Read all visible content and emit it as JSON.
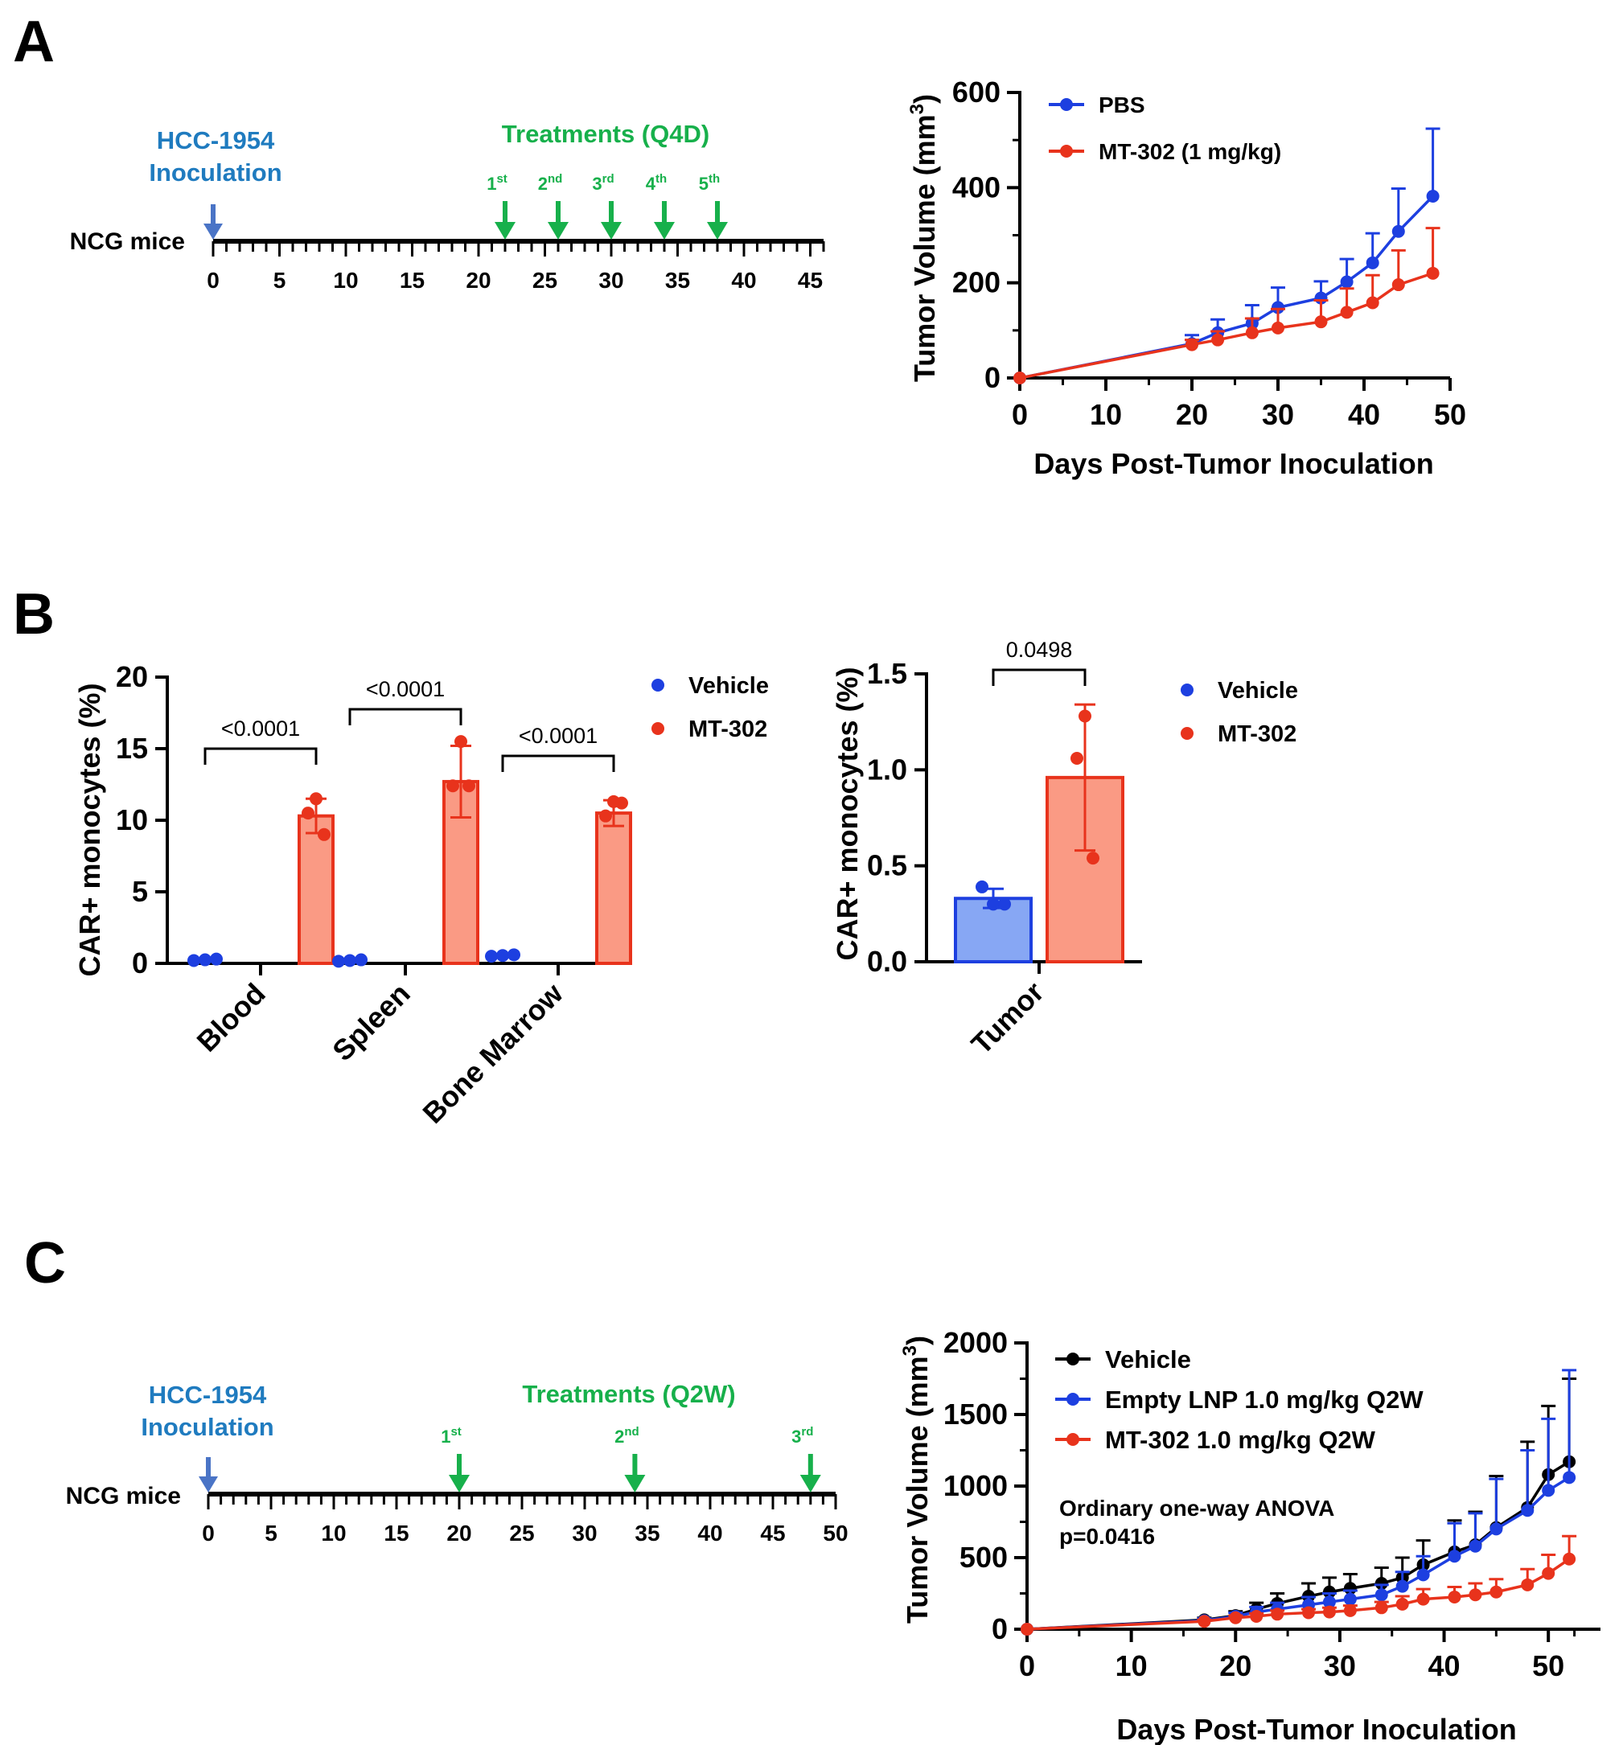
{
  "colors": {
    "blue": "#1d3fe0",
    "red": "#e8331c",
    "black": "#000000",
    "green": "#17b04b",
    "steel": "#1f7bbf",
    "arrowblue": "#4a74c6",
    "salmon": "#fa9a84",
    "lightblue": "#87a7f4"
  },
  "panels": {
    "A": "A",
    "B": "B",
    "C": "C"
  },
  "timelineA": {
    "mice_label": "NCG mice",
    "inoc_line1": "HCC-1954",
    "inoc_line2": "Inoculation",
    "treat_label": "Treatments (Q4D)",
    "min": 0,
    "max": 46,
    "tick_labels": [
      0,
      5,
      10,
      15,
      20,
      25,
      30,
      35,
      40,
      45
    ],
    "inoculation_day": 0,
    "doses": [
      {
        "day": 22,
        "num": "1",
        "sup": "st"
      },
      {
        "day": 26,
        "num": "2",
        "sup": "nd"
      },
      {
        "day": 30,
        "num": "3",
        "sup": "rd"
      },
      {
        "day": 34,
        "num": "4",
        "sup": "th"
      },
      {
        "day": 38,
        "num": "5",
        "sup": "th"
      }
    ]
  },
  "timelineC": {
    "mice_label": "NCG mice",
    "inoc_line1": "HCC-1954",
    "inoc_line2": "Inoculation",
    "treat_label": "Treatments (Q2W)",
    "min": 0,
    "max": 50,
    "tick_labels": [
      0,
      5,
      10,
      15,
      20,
      25,
      30,
      35,
      40,
      45,
      50
    ],
    "inoculation_day": 0,
    "doses": [
      {
        "day": 20,
        "num": "1",
        "sup": "st"
      },
      {
        "day": 34,
        "num": "2",
        "sup": "nd"
      },
      {
        "day": 48,
        "num": "3",
        "sup": "rd"
      }
    ]
  },
  "chart_data": [
    {
      "id": "A-growth",
      "type": "line",
      "title": "",
      "xlabel": "Days Post-Tumor Inoculation",
      "ylabel_main": "Tumor Volume (mm",
      "ylabel_sup": "3",
      "ylabel_end": ")",
      "xlim": [
        0,
        50
      ],
      "ylim": [
        0,
        600
      ],
      "xticks": [
        0,
        10,
        20,
        30,
        40,
        50
      ],
      "yticks": [
        0,
        200,
        400,
        600
      ],
      "legend_position": "top-left",
      "series": [
        {
          "name": "PBS",
          "color": "#1d3fe0",
          "x": [
            0,
            20,
            23,
            27,
            30,
            35,
            38,
            41,
            44,
            48
          ],
          "y": [
            0,
            72,
            95,
            115,
            148,
            168,
            202,
            242,
            308,
            382
          ],
          "err": [
            0,
            18,
            28,
            38,
            42,
            35,
            48,
            62,
            90,
            142
          ]
        },
        {
          "name": "MT-302 (1 mg/kg)",
          "color": "#e8331c",
          "x": [
            0,
            20,
            23,
            27,
            30,
            35,
            38,
            41,
            44,
            48
          ],
          "y": [
            0,
            70,
            80,
            95,
            105,
            118,
            138,
            158,
            196,
            220
          ],
          "err": [
            0,
            10,
            18,
            30,
            40,
            45,
            50,
            58,
            72,
            95
          ]
        }
      ]
    },
    {
      "id": "B-tissues",
      "type": "bar",
      "ylabel": "CAR+ monocytes (%)",
      "ylim": [
        0,
        20
      ],
      "yticks": [
        0,
        5,
        10,
        15,
        20
      ],
      "categories": [
        "Blood",
        "Spleen",
        "Bone Marrow"
      ],
      "legend_position": "top-right",
      "series": [
        {
          "name": "Vehicle",
          "color": "#1d3fe0",
          "values": [
            0.25,
            0.2,
            0.55
          ],
          "points": [
            [
              0.2,
              0.25,
              0.3
            ],
            [
              0.15,
              0.2,
              0.25
            ],
            [
              0.5,
              0.55,
              0.6
            ]
          ]
        },
        {
          "name": "MT-302",
          "color": "#e8331c",
          "values": [
            10.3,
            12.7,
            10.5
          ],
          "sd": [
            1.2,
            2.5,
            0.9
          ],
          "points": [
            [
              11.5,
              10.5,
              9.0
            ],
            [
              15.5,
              12.4,
              12.4
            ],
            [
              11.3,
              10.3,
              11.2
            ]
          ]
        }
      ],
      "pvalues": [
        "<0.0001",
        "<0.0001",
        "<0.0001"
      ]
    },
    {
      "id": "B-tumor",
      "type": "bar",
      "ylabel": "CAR+ monocytes (%)",
      "ylim": [
        0,
        1.5
      ],
      "yticks": [
        0.0,
        0.5,
        1.0,
        1.5
      ],
      "ytick_labels": [
        "0.0",
        "0.5",
        "1.0",
        "1.5"
      ],
      "categories": [
        "Tumor"
      ],
      "legend_position": "top-right",
      "series": [
        {
          "name": "Vehicle",
          "color": "#1d3fe0",
          "values": [
            0.33
          ],
          "sd": [
            0.05
          ],
          "points": [
            [
              0.39,
              0.3,
              0.3
            ]
          ]
        },
        {
          "name": "MT-302",
          "color": "#e8331c",
          "values": [
            0.96
          ],
          "sd": [
            0.38
          ],
          "points": [
            [
              1.28,
              1.06,
              0.54
            ]
          ]
        }
      ],
      "pvalues": [
        "0.0498"
      ]
    },
    {
      "id": "C-growth",
      "type": "line",
      "xlabel": "Days Post-Tumor Inoculation",
      "ylabel_main": "Tumor Volume (mm",
      "ylabel_sup": "3",
      "ylabel_end": ")",
      "xlim": [
        0,
        55
      ],
      "ylim": [
        0,
        2000
      ],
      "xticks": [
        0,
        10,
        20,
        30,
        40,
        50
      ],
      "yticks": [
        0,
        500,
        1000,
        1500,
        2000
      ],
      "legend_position": "top-left",
      "annotation_line1": "Ordinary one-way ANOVA",
      "annotation_line2": "p=0.0416",
      "series": [
        {
          "name": "Vehicle",
          "color": "#000000",
          "x": [
            0,
            17,
            20,
            22,
            24,
            27,
            29,
            31,
            34,
            36,
            38,
            41,
            43,
            45,
            48,
            50,
            52
          ],
          "y": [
            0,
            65,
            95,
            140,
            180,
            230,
            260,
            285,
            320,
            360,
            450,
            540,
            590,
            710,
            850,
            1080,
            1170
          ],
          "err": [
            0,
            15,
            30,
            45,
            70,
            90,
            100,
            100,
            110,
            140,
            170,
            220,
            230,
            360,
            460,
            480,
            580
          ]
        },
        {
          "name": "Empty LNP 1.0 mg/kg Q2W",
          "color": "#1d3fe0",
          "x": [
            0,
            17,
            20,
            22,
            24,
            27,
            29,
            31,
            34,
            36,
            38,
            41,
            43,
            45,
            48,
            50,
            52
          ],
          "y": [
            0,
            60,
            90,
            120,
            140,
            170,
            190,
            210,
            240,
            300,
            380,
            510,
            580,
            700,
            830,
            970,
            1060
          ],
          "err": [
            0,
            15,
            25,
            35,
            45,
            55,
            60,
            60,
            70,
            100,
            130,
            230,
            230,
            350,
            420,
            500,
            750
          ]
        },
        {
          "name": "MT-302 1.0 mg/kg Q2W",
          "color": "#e8331c",
          "x": [
            0,
            17,
            20,
            22,
            24,
            27,
            29,
            31,
            34,
            36,
            38,
            41,
            43,
            45,
            48,
            50,
            52
          ],
          "y": [
            0,
            55,
            80,
            90,
            105,
            115,
            120,
            130,
            150,
            175,
            210,
            225,
            240,
            260,
            310,
            390,
            490
          ],
          "err": [
            0,
            10,
            15,
            20,
            25,
            25,
            30,
            35,
            40,
            55,
            70,
            70,
            80,
            90,
            110,
            130,
            160
          ]
        }
      ]
    }
  ]
}
